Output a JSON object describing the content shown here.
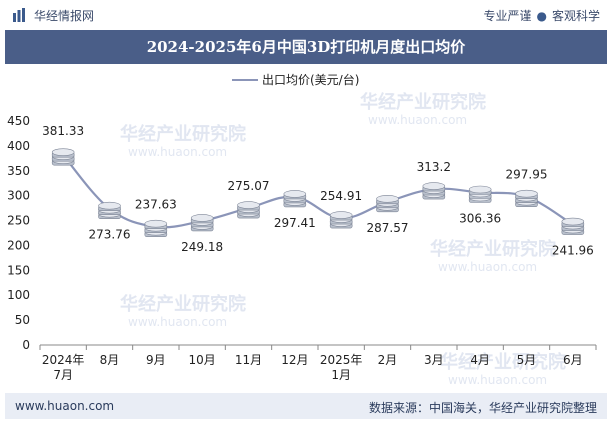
{
  "header": {
    "site_name": "华经情报网",
    "slogan_left": "专业严谨",
    "slogan_right": "客观科学"
  },
  "title": "2024-2025年6月中国3D打印机月度出口均价",
  "footer": {
    "website": "www.huaon.com",
    "source": "数据来源：中国海关，华经产业研究院整理"
  },
  "watermark": {
    "text": "华经产业研究院",
    "url": "www.huaon.com"
  },
  "colors": {
    "title_bg": "#4a5e88",
    "line": "#8b95b8",
    "footer_bg": "#e9edf5"
  },
  "chart_data": {
    "type": "line",
    "title": "2024-2025年6月中国3D打印机月度出口均价",
    "legend": "出口均价(美元/台)",
    "legend_position": "top-center",
    "categories": [
      "2024年\n7月",
      "8月",
      "9月",
      "10月",
      "11月",
      "12月",
      "2025年\n1月",
      "2月",
      "3月",
      "4月",
      "5月",
      "6月"
    ],
    "series": [
      {
        "name": "出口均价(美元/台)",
        "values": [
          381.33,
          273.76,
          237.63,
          249.18,
          275.07,
          297.41,
          254.91,
          287.57,
          313.2,
          306.36,
          297.95,
          241.96
        ]
      }
    ],
    "data_labels": [
      "381.33",
      "273.76",
      "237.63",
      "249.18",
      "275.07",
      "297.41",
      "254.91",
      "287.57",
      "313.2",
      "306.36",
      "297.95",
      "241.96"
    ],
    "ylim": [
      0,
      450
    ],
    "yticks": [
      0,
      50,
      100,
      150,
      200,
      250,
      300,
      350,
      400,
      450
    ],
    "grid": false,
    "marker": "coin-stack"
  }
}
